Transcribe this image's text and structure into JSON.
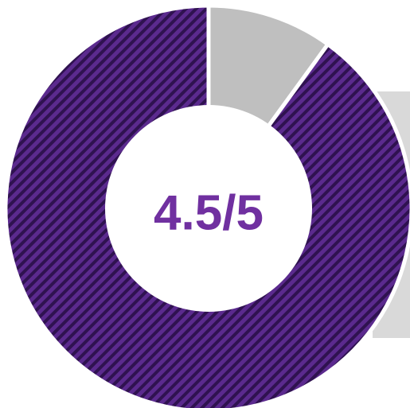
{
  "chart_data": {
    "type": "donut",
    "center_label": "4.5/5",
    "values": [
      0.5,
      4.5
    ],
    "colors": [
      "#bfbfbf",
      "#4a1f78"
    ],
    "hatch": [
      false,
      true
    ]
  }
}
